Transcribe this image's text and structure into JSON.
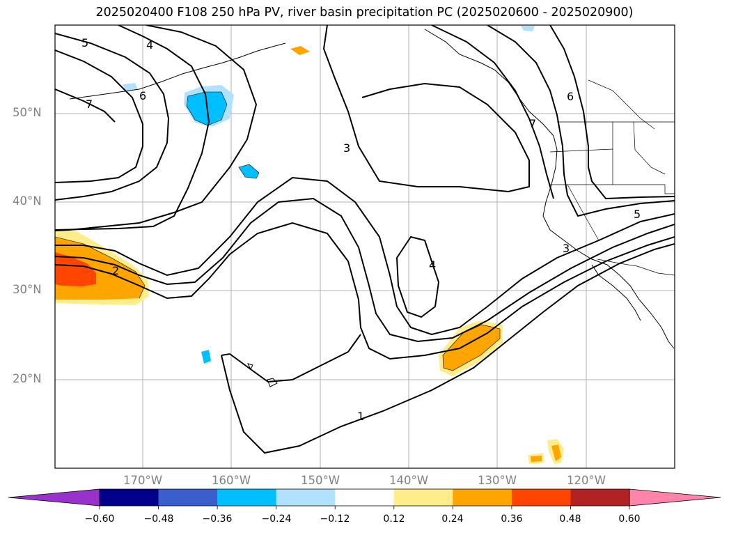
{
  "title": "2025020400 F108 250 hPa PV, river basin precipitation PC (2025020600 - 2025020900)",
  "lat_labels": [
    "50°N",
    "40°N",
    "30°N",
    "20°N"
  ],
  "lon_labels": [
    "170°W",
    "160°W",
    "150°W",
    "140°W",
    "130°W",
    "120°W"
  ],
  "colorbar": {
    "ticks": [
      "−0.60",
      "−0.48",
      "−0.36",
      "−0.24",
      "−0.12",
      "0.12",
      "0.24",
      "0.36",
      "0.48",
      "0.60"
    ],
    "colors": [
      "#9932cc",
      "#00008b",
      "#3a5fcd",
      "#00bfff",
      "#b0e2ff",
      "#ffffff",
      "#ffec8b",
      "#ffa500",
      "#ff4500",
      "#b22222",
      "#ff83aa"
    ]
  },
  "contour_labels": [
    "5",
    "4",
    "6",
    "7",
    "3",
    "2",
    "4",
    "6",
    "7",
    "5",
    "3",
    "1"
  ]
}
